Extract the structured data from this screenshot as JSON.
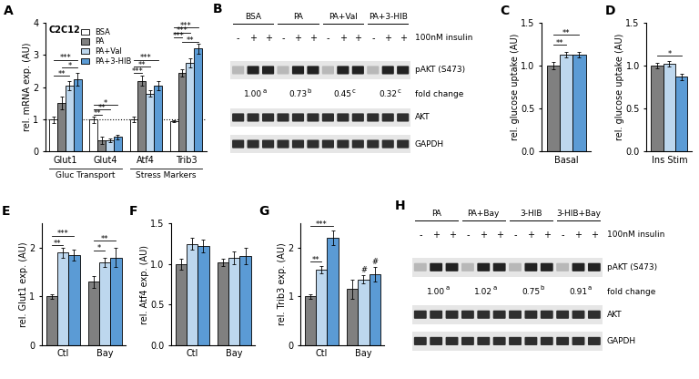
{
  "chart_data": [
    {
      "panel": "A",
      "type": "bar",
      "label": "C2C12",
      "y_label": "rel. mRNA exp. (AU)",
      "categories": [
        "Glut1",
        "Glut4",
        "Atf4",
        "Trib3"
      ],
      "groups": [
        {
          "label": "Gluc Transport",
          "categories": [
            "Glut1",
            "Glut4"
          ]
        },
        {
          "label": "Stress Markers",
          "categories": [
            "Atf4",
            "Trib3"
          ]
        }
      ],
      "series": [
        {
          "name": "BSA",
          "color": "#ffffff",
          "values": [
            1.0,
            1.0,
            1.0,
            0.95
          ],
          "errors": [
            0.1,
            0.1,
            0.08,
            0.03
          ]
        },
        {
          "name": "PA",
          "color": "#808080",
          "values": [
            1.5,
            0.35,
            2.2,
            2.45
          ],
          "errors": [
            0.2,
            0.1,
            0.15,
            0.12
          ]
        },
        {
          "name": "PA+Val",
          "color": "#bdd7ee",
          "values": [
            2.05,
            0.35,
            1.8,
            2.75
          ],
          "errors": [
            0.15,
            0.05,
            0.1,
            0.15
          ]
        },
        {
          "name": "PA+3-HIB",
          "color": "#5b9bd5",
          "values": [
            2.25,
            0.45,
            2.05,
            3.2
          ],
          "errors": [
            0.2,
            0.08,
            0.15,
            0.15
          ]
        }
      ],
      "hline": 1,
      "ylim": [
        0,
        4
      ],
      "yticks": [
        0,
        1,
        2,
        3,
        4
      ],
      "legend": "upper center",
      "annotations": [
        {
          "text": "**",
          "category": "Glut1",
          "from": "BSA",
          "to": "PA+Val",
          "y": 2.35
        },
        {
          "text": "*",
          "category": "Glut1",
          "from": "PA",
          "to": "PA+3-HIB",
          "y": 2.6
        },
        {
          "text": "***",
          "category": "Glut1",
          "from": "BSA",
          "to": "PA+3-HIB",
          "y": 2.85
        },
        {
          "text": "**",
          "category": "Glut4",
          "from": "BSA",
          "to": "PA",
          "y": 1.15
        },
        {
          "text": "**",
          "category": "Glut4",
          "from": "BSA",
          "to": "PA+Val",
          "y": 1.3
        },
        {
          "text": "*",
          "category": "Glut4",
          "from": "BSA",
          "to": "PA+3-HIB",
          "y": 1.45
        },
        {
          "text": "***",
          "category": "Atf4",
          "from": "BSA",
          "to": "PA",
          "y": 2.45
        },
        {
          "text": "**",
          "category": "Atf4",
          "from": "BSA",
          "to": "PA+Val",
          "y": 2.65
        },
        {
          "text": "***",
          "category": "Atf4",
          "from": "BSA",
          "to": "PA+3-HIB",
          "y": 2.85
        },
        {
          "text": "**",
          "category": "Trib3",
          "from": "PA",
          "to": "PA+3-HIB",
          "y": 3.4
        },
        {
          "text": "***",
          "category": "Trib3",
          "from": "BSA",
          "to": "PA",
          "y": 3.55
        },
        {
          "text": "***",
          "category": "Trib3",
          "from": "BSA",
          "to": "PA+Val",
          "y": 3.7
        },
        {
          "text": "***",
          "category": "Trib3",
          "from": "BSA",
          "to": "PA+3-HIB",
          "y": 3.85
        }
      ]
    },
    {
      "panel": "C",
      "type": "bar",
      "y_label": "rel. glucose uptake (AU)",
      "categories": [
        "Basal"
      ],
      "series": [
        {
          "name": "PA",
          "color": "#808080",
          "values": [
            1.0
          ],
          "errors": [
            0.04
          ]
        },
        {
          "name": "PA+Val",
          "color": "#bdd7ee",
          "values": [
            1.13
          ],
          "errors": [
            0.03
          ]
        },
        {
          "name": "PA+3-HIB",
          "color": "#5b9bd5",
          "values": [
            1.13
          ],
          "errors": [
            0.03
          ]
        }
      ],
      "ylim": [
        0,
        1.5
      ],
      "yticks": [
        {
          "value": 0,
          "label": "0.0"
        },
        0.5,
        {
          "value": 1,
          "label": "1.0"
        },
        1.5
      ],
      "annotations": [
        {
          "text": "**",
          "category": "Basal",
          "from": "PA",
          "to": "PA+Val",
          "y": 1.24
        },
        {
          "text": "**",
          "category": "Basal",
          "from": "PA",
          "to": "PA+3-HIB",
          "y": 1.36
        }
      ]
    },
    {
      "panel": "D",
      "type": "bar",
      "y_label": "rel. glucose uptake (AU)",
      "categories": [
        "Ins Stim"
      ],
      "series": [
        {
          "name": "PA",
          "color": "#808080",
          "values": [
            1.0
          ],
          "errors": [
            0.03
          ]
        },
        {
          "name": "PA+Val",
          "color": "#bdd7ee",
          "values": [
            1.02
          ],
          "errors": [
            0.03
          ]
        },
        {
          "name": "PA+3-HIB",
          "color": "#5b9bd5",
          "values": [
            0.87
          ],
          "errors": [
            0.04
          ]
        }
      ],
      "ylim": [
        0,
        1.5
      ],
      "yticks": [
        {
          "value": 0,
          "label": "0.0"
        },
        0.5,
        {
          "value": 1,
          "label": "1.0"
        },
        1.5
      ],
      "annotations": [
        {
          "text": "*",
          "category": "Ins Stim",
          "from": "PA",
          "to": "PA+3-HIB",
          "y": 1.12
        }
      ]
    },
    {
      "panel": "E",
      "type": "bar",
      "y_label": "rel. Glut1 exp. (AU)",
      "categories": [
        "Ctl",
        "Bay"
      ],
      "series": [
        {
          "name": "PA",
          "color": "#808080",
          "values": [
            1.0,
            1.3
          ],
          "errors": [
            0.05,
            0.12
          ]
        },
        {
          "name": "PA+Val",
          "color": "#bdd7ee",
          "values": [
            1.9,
            1.7
          ],
          "errors": [
            0.1,
            0.1
          ]
        },
        {
          "name": "PA+3-HIB",
          "color": "#5b9bd5",
          "values": [
            1.85,
            1.8
          ],
          "errors": [
            0.12,
            0.2
          ]
        }
      ],
      "ylim": [
        0,
        2.5
      ],
      "yticks": [
        0,
        1,
        2
      ],
      "annotations": [
        {
          "text": "**",
          "category": "Ctl",
          "from": "PA",
          "to": "PA+Val",
          "y": 2.05
        },
        {
          "text": "***",
          "category": "Ctl",
          "from": "PA",
          "to": "PA+3-HIB",
          "y": 2.25
        },
        {
          "text": "*",
          "category": "Bay",
          "from": "PA",
          "to": "PA+Val",
          "y": 1.95
        },
        {
          "text": "**",
          "category": "Bay",
          "from": "PA",
          "to": "PA+3-HIB",
          "y": 2.15
        }
      ]
    },
    {
      "panel": "F",
      "type": "bar",
      "y_label": "rel. Atf4 exp. (AU)",
      "categories": [
        "Ctl",
        "Bay"
      ],
      "series": [
        {
          "name": "PA",
          "color": "#808080",
          "values": [
            1.0,
            1.02
          ],
          "errors": [
            0.07,
            0.05
          ]
        },
        {
          "name": "PA+Val",
          "color": "#bdd7ee",
          "values": [
            1.25,
            1.08
          ],
          "errors": [
            0.07,
            0.08
          ]
        },
        {
          "name": "PA+3-HIB",
          "color": "#5b9bd5",
          "values": [
            1.22,
            1.1
          ],
          "errors": [
            0.08,
            0.1
          ]
        }
      ],
      "ylim": [
        0,
        1.5
      ],
      "yticks": [
        {
          "value": 0,
          "label": "0.0"
        },
        0.5,
        {
          "value": 1,
          "label": "1.0"
        },
        1.5
      ],
      "annotations": []
    },
    {
      "panel": "G",
      "type": "bar",
      "y_label": "rel. Trib3 exp. (AU)",
      "categories": [
        "Ctl",
        "Bay"
      ],
      "series": [
        {
          "name": "PA",
          "color": "#808080",
          "values": [
            1.0,
            1.15
          ],
          "errors": [
            0.05,
            0.2
          ]
        },
        {
          "name": "PA+Val",
          "color": "#bdd7ee",
          "values": [
            1.55,
            1.35
          ],
          "errors": [
            0.07,
            0.08
          ]
        },
        {
          "name": "PA+3-HIB",
          "color": "#5b9bd5",
          "values": [
            2.2,
            1.45
          ],
          "errors": [
            0.15,
            0.15
          ]
        }
      ],
      "ylim": [
        0,
        2.5
      ],
      "yticks": [
        0,
        1,
        2
      ],
      "annotations": [
        {
          "text": "**",
          "category": "Ctl",
          "from": "PA",
          "to": "PA+Val",
          "y": 1.72
        },
        {
          "text": "***",
          "category": "Ctl",
          "from": "PA",
          "to": "PA+3-HIB",
          "y": 2.45
        },
        {
          "text": "#",
          "category": "Bay",
          "series": "PA+Val",
          "y": 1.45
        },
        {
          "text": "#",
          "category": "Bay",
          "series": "PA+3-HIB",
          "y": 1.62
        }
      ]
    }
  ],
  "blots": [
    {
      "panel": "B",
      "treatment": "100nM insulin",
      "fold_label": "fold change",
      "rows": [
        "pAKT (S473)",
        "AKT",
        "GAPDH"
      ],
      "groups": [
        {
          "label": "BSA",
          "lanes": [
            "-",
            "+",
            "+"
          ],
          "fold": {
            "text": "1.00",
            "sup": "a"
          }
        },
        {
          "label": "PA",
          "lanes": [
            "-",
            "+",
            "+"
          ],
          "fold": {
            "text": "0.73",
            "sup": "b"
          }
        },
        {
          "label": "PA+Val",
          "lanes": [
            "-",
            "+",
            "+"
          ],
          "fold": {
            "text": "0.45",
            "sup": "c"
          }
        },
        {
          "label": "PA+3-HIB",
          "lanes": [
            "-",
            "+",
            "+"
          ],
          "fold": {
            "text": "0.32",
            "sup": "c"
          }
        }
      ]
    },
    {
      "panel": "H",
      "treatment": "100nM insulin",
      "fold_label": "fold change",
      "rows": [
        "pAKT (S473)",
        "AKT",
        "GAPDH"
      ],
      "groups": [
        {
          "label": "PA",
          "lanes": [
            "-",
            "+",
            "+"
          ],
          "fold": {
            "text": "1.00",
            "sup": "a"
          }
        },
        {
          "label": "PA+Bay",
          "lanes": [
            "-",
            "+",
            "+"
          ],
          "fold": {
            "text": "1.02",
            "sup": "a"
          }
        },
        {
          "label": "3-HIB",
          "lanes": [
            "-",
            "+",
            "+"
          ],
          "fold": {
            "text": "0.75",
            "sup": "b"
          }
        },
        {
          "label": "3-HIB+Bay",
          "lanes": [
            "-",
            "+",
            "+"
          ],
          "fold": {
            "text": "0.91",
            "sup": "a"
          }
        }
      ]
    }
  ]
}
